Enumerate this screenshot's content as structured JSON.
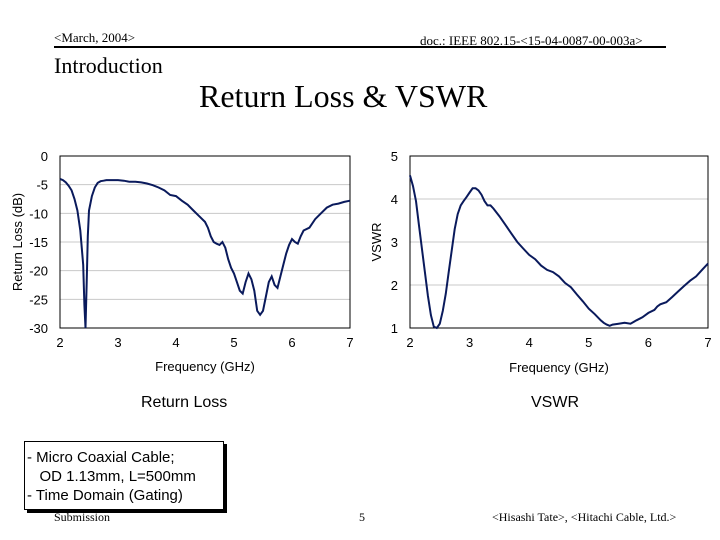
{
  "header": {
    "date": "<March, 2004>",
    "doc": "doc.: IEEE 802.15-<15-04-0087-00-003a>"
  },
  "section": "Introduction",
  "title": "Return Loss & VSWR",
  "chart_data": [
    {
      "type": "line",
      "name": "return-loss",
      "caption": "Return Loss",
      "xlabel": "Frequency (GHz)",
      "ylabel": "Return Loss (dB)",
      "xlim": [
        2,
        7
      ],
      "ylim": [
        -30,
        0
      ],
      "xticks": [
        "2",
        "3",
        "4",
        "5",
        "6",
        "7"
      ],
      "yticks": [
        "0",
        "-5",
        "-10",
        "-15",
        "-20",
        "-25",
        "-30"
      ],
      "x": [
        2.0,
        2.05,
        2.1,
        2.15,
        2.2,
        2.25,
        2.3,
        2.35,
        2.4,
        2.42,
        2.44,
        2.46,
        2.48,
        2.5,
        2.55,
        2.6,
        2.65,
        2.7,
        2.75,
        2.8,
        2.9,
        3.0,
        3.1,
        3.2,
        3.3,
        3.4,
        3.5,
        3.6,
        3.7,
        3.8,
        3.9,
        4.0,
        4.1,
        4.2,
        4.3,
        4.4,
        4.5,
        4.55,
        4.6,
        4.65,
        4.7,
        4.75,
        4.8,
        4.85,
        4.9,
        4.95,
        5.0,
        5.05,
        5.1,
        5.15,
        5.2,
        5.25,
        5.3,
        5.35,
        5.4,
        5.45,
        5.5,
        5.55,
        5.6,
        5.65,
        5.7,
        5.75,
        5.8,
        5.85,
        5.9,
        5.95,
        6.0,
        6.05,
        6.1,
        6.15,
        6.2,
        6.3,
        6.4,
        6.5,
        6.6,
        6.7,
        6.8,
        6.9,
        7.0
      ],
      "values": [
        -4.0,
        -4.2,
        -4.6,
        -5.2,
        -6.0,
        -7.5,
        -9.5,
        -13.0,
        -19.0,
        -26.0,
        -30.0,
        -22.0,
        -14.0,
        -9.5,
        -7.0,
        -5.5,
        -4.7,
        -4.4,
        -4.3,
        -4.2,
        -4.2,
        -4.2,
        -4.3,
        -4.5,
        -4.5,
        -4.6,
        -4.8,
        -5.1,
        -5.5,
        -6.0,
        -6.8,
        -7.0,
        -7.8,
        -8.5,
        -9.5,
        -10.5,
        -11.5,
        -12.5,
        -14.0,
        -15.0,
        -15.3,
        -15.5,
        -15.0,
        -16.0,
        -18.0,
        -19.5,
        -20.5,
        -22.0,
        -23.5,
        -24.0,
        -22.0,
        -20.5,
        -21.5,
        -23.5,
        -27.0,
        -27.7,
        -27.0,
        -24.5,
        -22.0,
        -21.0,
        -22.5,
        -23.0,
        -21.0,
        -19.0,
        -17.0,
        -15.5,
        -14.5,
        -15.0,
        -15.3,
        -14.0,
        -13.0,
        -12.5,
        -11.0,
        -10.0,
        -9.0,
        -8.5,
        -8.3,
        -8.0,
        -7.8
      ]
    },
    {
      "type": "line",
      "name": "vswr",
      "caption": "VSWR",
      "xlabel": "Frequency (GHz)",
      "ylabel": "VSWR",
      "xlim": [
        2,
        7
      ],
      "ylim": [
        1,
        5
      ],
      "xticks": [
        "2",
        "3",
        "4",
        "5",
        "6",
        "7"
      ],
      "yticks": [
        "5",
        "4",
        "3",
        "2",
        "1"
      ],
      "x": [
        2.0,
        2.05,
        2.1,
        2.15,
        2.2,
        2.25,
        2.3,
        2.35,
        2.4,
        2.45,
        2.5,
        2.55,
        2.6,
        2.65,
        2.7,
        2.75,
        2.8,
        2.85,
        2.9,
        2.95,
        3.0,
        3.05,
        3.1,
        3.15,
        3.2,
        3.25,
        3.3,
        3.35,
        3.4,
        3.5,
        3.6,
        3.7,
        3.8,
        3.9,
        4.0,
        4.1,
        4.2,
        4.3,
        4.4,
        4.5,
        4.6,
        4.7,
        4.8,
        4.9,
        5.0,
        5.1,
        5.2,
        5.25,
        5.3,
        5.35,
        5.4,
        5.5,
        5.6,
        5.7,
        5.8,
        5.9,
        6.0,
        6.1,
        6.15,
        6.2,
        6.3,
        6.4,
        6.5,
        6.6,
        6.7,
        6.8,
        6.9,
        7.0
      ],
      "values": [
        4.55,
        4.3,
        3.95,
        3.4,
        2.85,
        2.3,
        1.75,
        1.3,
        1.03,
        1.0,
        1.1,
        1.4,
        1.8,
        2.3,
        2.8,
        3.3,
        3.65,
        3.85,
        3.95,
        4.05,
        4.15,
        4.25,
        4.25,
        4.2,
        4.1,
        3.95,
        3.85,
        3.85,
        3.78,
        3.6,
        3.4,
        3.2,
        3.0,
        2.85,
        2.7,
        2.6,
        2.45,
        2.35,
        2.3,
        2.2,
        2.05,
        1.95,
        1.78,
        1.62,
        1.45,
        1.32,
        1.18,
        1.12,
        1.08,
        1.05,
        1.08,
        1.1,
        1.12,
        1.1,
        1.18,
        1.25,
        1.35,
        1.42,
        1.5,
        1.55,
        1.6,
        1.72,
        1.85,
        1.98,
        2.1,
        2.2,
        2.35,
        2.5
      ]
    }
  ],
  "captions": {
    "left": "Return Loss",
    "right": "VSWR"
  },
  "notes": [
    "- Micro Coaxial Cable;",
    "   OD 1.13mm, L=500mm",
    "- Time Domain (Gating)"
  ],
  "footer": {
    "left": "Submission",
    "page": "5",
    "right": "<Hisashi Tate>, <Hitachi Cable, Ltd.>"
  }
}
